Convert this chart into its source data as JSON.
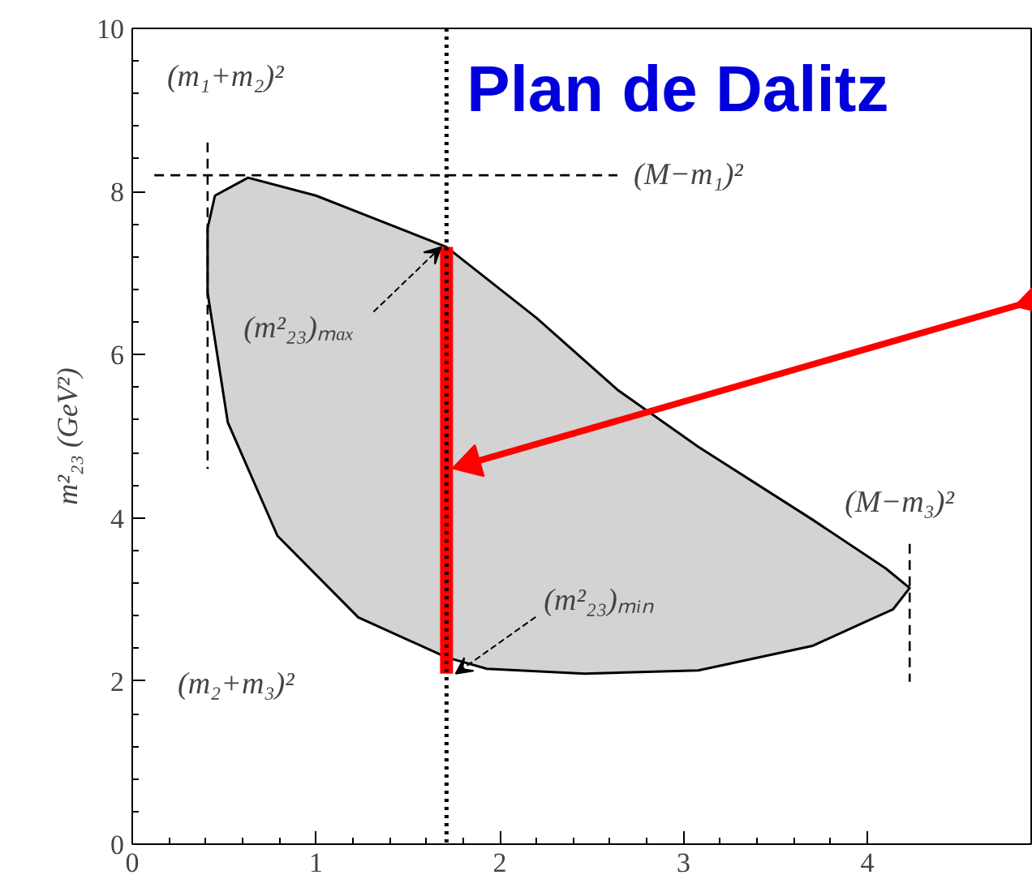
{
  "chart_data": {
    "type": "area",
    "title": "Plan de Dalitz",
    "ylabel": "m²₂₃ (GeV²)",
    "xlim": [
      0,
      4.9
    ],
    "ylim": [
      0,
      10
    ],
    "xticks": [
      0,
      1,
      2,
      3,
      4
    ],
    "yticks": [
      0,
      2,
      4,
      6,
      8,
      10
    ],
    "grid": false,
    "series": [
      {
        "color": "#d3d3d3",
        "x": [
          0.41,
          0.45,
          0.63,
          1.0,
          1.71,
          2.2,
          2.64,
          3.08,
          3.7,
          4.1,
          4.23,
          4.14,
          3.7,
          3.08,
          2.46,
          1.93,
          1.71,
          1.23,
          0.79,
          0.52,
          0.41,
          0.41
        ],
        "values": [
          7.55,
          7.95,
          8.17,
          7.95,
          7.32,
          6.45,
          5.57,
          4.87,
          3.98,
          3.38,
          3.14,
          2.88,
          2.43,
          2.13,
          2.09,
          2.15,
          2.29,
          2.78,
          3.78,
          5.17,
          6.76,
          7.55
        ]
      },
      {
        "type": "line",
        "color": "#000000",
        "line_style": "dashed",
        "x": [
          0.12,
          2.64
        ],
        "values": [
          8.2,
          8.2
        ]
      },
      {
        "type": "line",
        "color": "#000000",
        "line_style": "dashed",
        "x": [
          0.41,
          0.41
        ],
        "values": [
          8.6,
          4.6
        ]
      },
      {
        "type": "line",
        "color": "#000000",
        "line_style": "dashed",
        "x": [
          4.23,
          4.23
        ],
        "values": [
          3.68,
          1.99
        ]
      },
      {
        "type": "line",
        "color": "#ff0000",
        "line_style": "solid",
        "x": [
          1.71,
          1.71
        ],
        "values": [
          2.09,
          7.32
        ]
      },
      {
        "type": "line",
        "color": "#ff0000",
        "line_style": "solid",
        "marker": "triangle",
        "x": [
          4.9,
          1.84
        ],
        "values": [
          6.66,
          4.67
        ]
      }
    ],
    "ref_lines": [
      {
        "axis": "x",
        "value": 1.71,
        "line_style": "dotted",
        "color": "#000000"
      }
    ],
    "annotations": [
      {
        "text": "(m₁+m₂)²",
        "x": 0.41,
        "y": 8.6
      },
      {
        "text": "(M−m₁)²",
        "x": 2.64,
        "y": 8.2
      },
      {
        "text": "(M−m₃)²",
        "x": 4.23,
        "y": 3.68
      },
      "(m₂+m₃)²",
      {
        "text": "(m²₂₃)ₘₐₓ",
        "x": 1.71,
        "y": 7.32
      },
      {
        "text": "(m²₂₃)ₘᵢₙ",
        "x": 1.71,
        "y": 2.09
      }
    ]
  }
}
